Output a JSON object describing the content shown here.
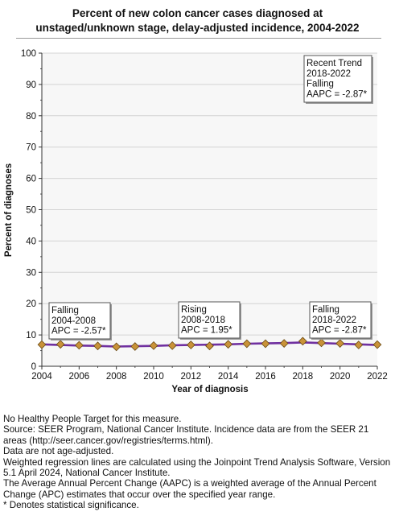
{
  "chart_data": {
    "type": "line",
    "title_lines": [
      "Percent of new colon cancer cases diagnosed at",
      "unstaged/unknown stage, delay-adjusted incidence, 2004-2022"
    ],
    "xlabel": "Year of diagnosis",
    "ylabel": "Percent of diagnoses",
    "xlim": [
      2004,
      2022
    ],
    "ylim": [
      0,
      100
    ],
    "x_ticks": [
      2004,
      2006,
      2008,
      2010,
      2012,
      2014,
      2016,
      2018,
      2020,
      2022
    ],
    "y_ticks": [
      0,
      10,
      20,
      30,
      40,
      50,
      60,
      70,
      80,
      90,
      100
    ],
    "grid": true,
    "x": [
      2004,
      2005,
      2006,
      2007,
      2008,
      2009,
      2010,
      2011,
      2012,
      2013,
      2014,
      2015,
      2016,
      2017,
      2018,
      2019,
      2020,
      2021,
      2022
    ],
    "series": [
      {
        "kind": "observed",
        "values": [
          6.9,
          7.0,
          6.7,
          6.5,
          6.2,
          6.3,
          6.6,
          6.6,
          6.8,
          6.5,
          7.0,
          7.2,
          7.2,
          7.3,
          8.0,
          7.5,
          7.3,
          6.8,
          6.9
        ],
        "color": "#c99238"
      },
      {
        "kind": "joinpoint-fit",
        "values": [
          7.0,
          6.8,
          6.6,
          6.5,
          6.3,
          6.4,
          6.5,
          6.7,
          6.8,
          6.9,
          7.0,
          7.2,
          7.3,
          7.4,
          7.6,
          7.4,
          7.2,
          7.0,
          6.8
        ],
        "color": "#7030a0"
      }
    ],
    "annotations": [
      {
        "id": "seg1",
        "lines": [
          "Falling",
          "2004-2008",
          "APC = -2.57*"
        ]
      },
      {
        "id": "seg2",
        "lines": [
          "Rising",
          "2008-2018",
          "APC =  1.95*"
        ]
      },
      {
        "id": "seg3",
        "lines": [
          "Falling",
          "2018-2022",
          "APC = -2.87*"
        ]
      },
      {
        "id": "recent",
        "lines": [
          "Recent Trend",
          "2018-2022",
          "Falling",
          "AAPC = -2.87*"
        ]
      }
    ]
  },
  "footnotes": [
    "No Healthy People Target for this measure.",
    "Source: SEER Program, National Cancer Institute. Incidence data are from the SEER 21 areas (http://seer.cancer.gov/registries/terms.html).",
    "Data are not age-adjusted.",
    "Weighted regression lines are calculated using the Joinpoint Trend Analysis Software, Version 5.1 April 2024, National Cancer Institute.",
    "The Average Annual Percent Change (AAPC) is a weighted average of the Annual Percent Change (APC) estimates that occur over the specified year range.",
    "* Denotes statistical significance."
  ]
}
